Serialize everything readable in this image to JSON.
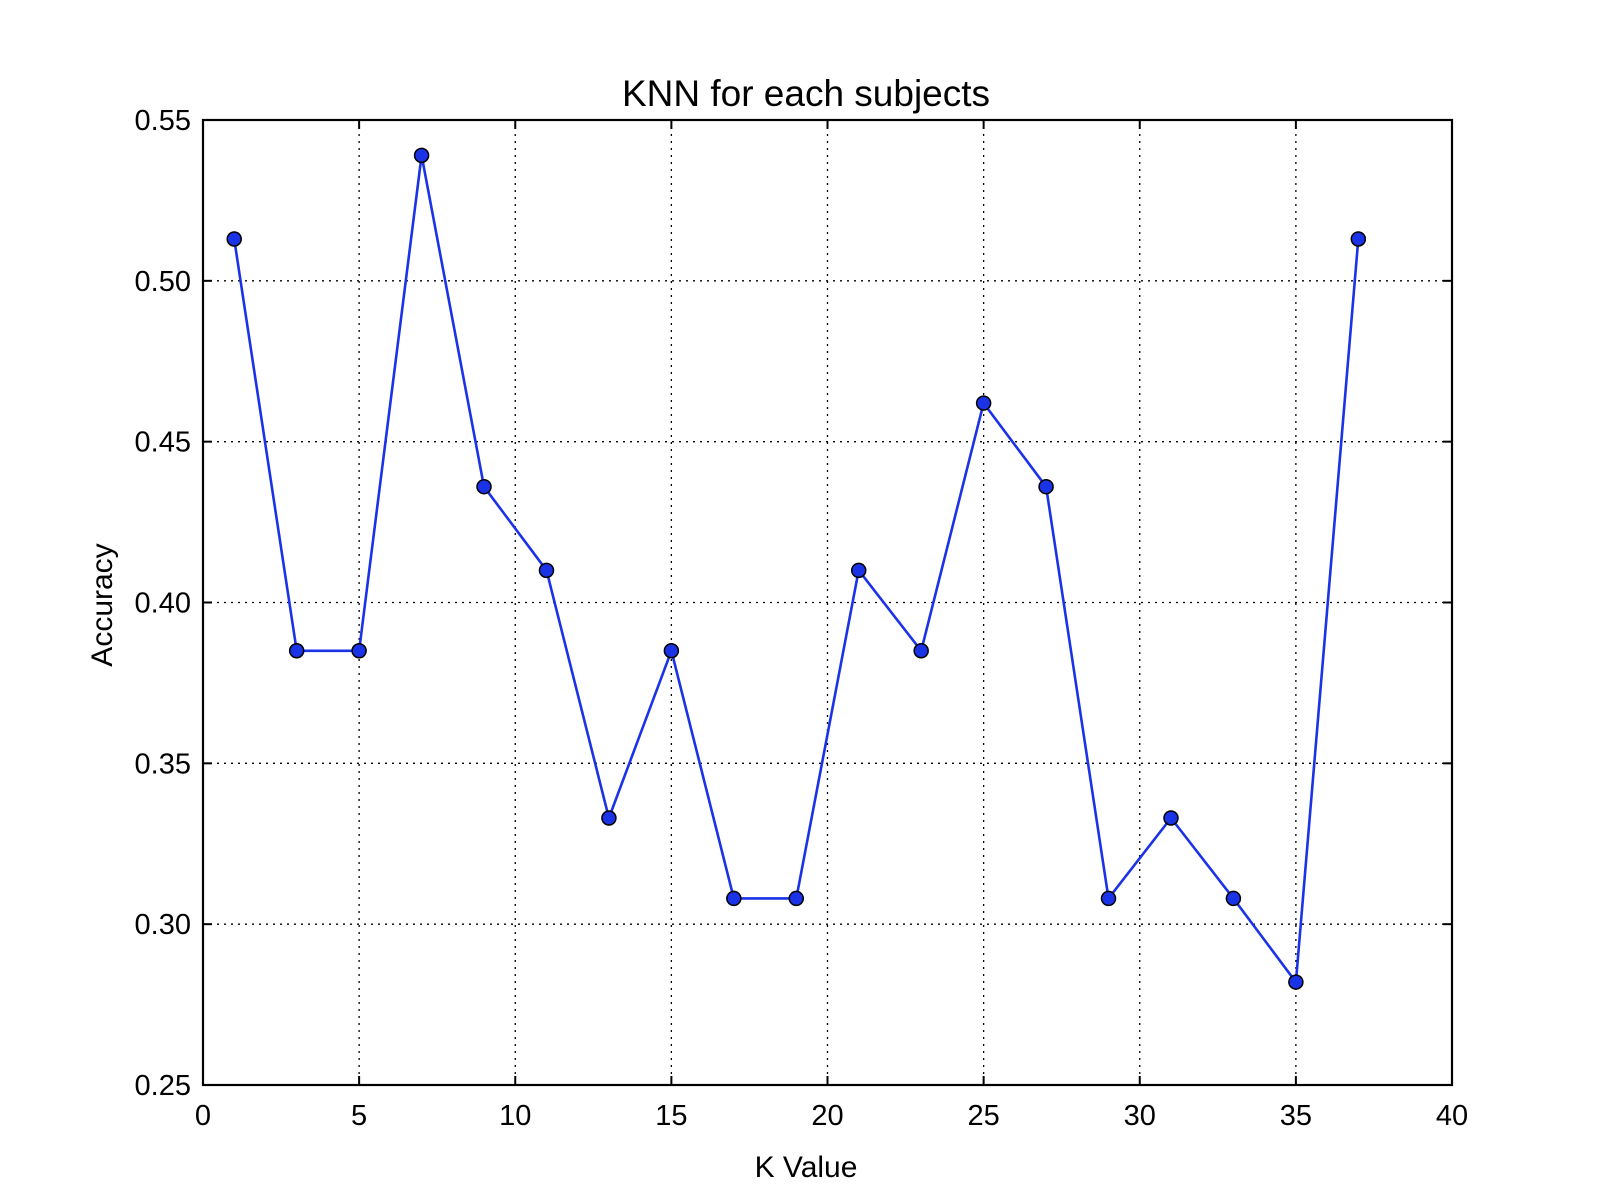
{
  "chart_data": {
    "type": "line",
    "title": "KNN for each subjects",
    "xlabel": "K Value",
    "ylabel": "Accuracy",
    "xlim": [
      0,
      40
    ],
    "ylim": [
      0.25,
      0.55
    ],
    "x_ticks": [
      "0",
      "5",
      "10",
      "15",
      "20",
      "25",
      "30",
      "35",
      "40"
    ],
    "y_ticks": [
      "0.25",
      "0.30",
      "0.35",
      "0.40",
      "0.45",
      "0.50",
      "0.55"
    ],
    "grid": true,
    "series": [
      {
        "color": "#1a33e6",
        "marker_color": "#1a33e6",
        "x": [
          1,
          3,
          5,
          7,
          9,
          11,
          13,
          15,
          17,
          19,
          21,
          23,
          25,
          27,
          29,
          31,
          33,
          35,
          37
        ],
        "y": [
          0.513,
          0.385,
          0.385,
          0.539,
          0.436,
          0.41,
          0.333,
          0.385,
          0.308,
          0.308,
          0.41,
          0.385,
          0.462,
          0.436,
          0.308,
          0.333,
          0.308,
          0.282,
          0.513
        ]
      }
    ]
  }
}
